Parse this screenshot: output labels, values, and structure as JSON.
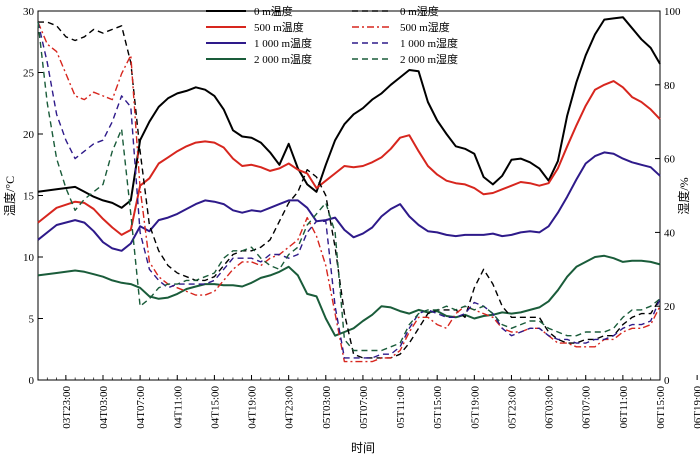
{
  "chart_data": {
    "type": "line",
    "xlabel": "时间",
    "ylabel_left": "温度/°C",
    "ylabel_right": "湿度/%",
    "ylim_left": [
      0,
      30
    ],
    "ylim_right": [
      0,
      100
    ],
    "yticks_left": [
      "0",
      "5",
      "10",
      "15",
      "20",
      "25",
      "30"
    ],
    "yticks_right": [
      "0",
      "20",
      "40",
      "60",
      "80",
      "100"
    ],
    "x_ticks": [
      "03T23:00",
      "04T03:00",
      "04T07:00",
      "04T11:00",
      "04T15:00",
      "04T19:00",
      "04T23:00",
      "05T03:00",
      "05T07:00",
      "05T11:00",
      "05T15:00",
      "05T19:00",
      "05T23:00",
      "06T03:00",
      "06T07:00",
      "06T11:00",
      "06T15:00",
      "06T19:00"
    ],
    "x_start_hour": 20,
    "x_end_hour": 87,
    "grid": false,
    "legend_position": "top",
    "series": [
      {
        "name": "0 m温度",
        "axis": "left",
        "style": "solid",
        "color": "#000000",
        "x": [
          20,
          22,
          24,
          25,
          26,
          27,
          28,
          29,
          30,
          31,
          32,
          33,
          34,
          35,
          36,
          37,
          38,
          39,
          40,
          41,
          42,
          43,
          44,
          45,
          46,
          47,
          48,
          49,
          50,
          51,
          52,
          53,
          54,
          55,
          56,
          57,
          58,
          59,
          60,
          61,
          62,
          63,
          64,
          65,
          66,
          67,
          68,
          69,
          70,
          71,
          72,
          73,
          74,
          75,
          76,
          77,
          78,
          79,
          80,
          81,
          82,
          83,
          84,
          85,
          86,
          87
        ],
        "y": [
          15.3,
          15.5,
          15.7,
          15.3,
          14.9,
          14.6,
          14.4,
          14.0,
          14.6,
          19.5,
          21.0,
          22.2,
          22.9,
          23.3,
          23.5,
          23.8,
          23.6,
          23.1,
          22.0,
          20.3,
          19.8,
          19.7,
          19.3,
          18.5,
          17.5,
          19.2,
          17.2,
          15.9,
          15.3,
          17.5,
          19.5,
          20.8,
          21.6,
          22.1,
          22.8,
          23.3,
          24.0,
          24.6,
          25.2,
          25.1,
          22.6,
          21.1,
          20.0,
          19.0,
          18.8,
          18.4,
          16.5,
          15.9,
          16.6,
          17.9,
          18.0,
          17.7,
          17.2,
          16.2,
          17.8,
          21.5,
          24.2,
          26.4,
          28.1,
          29.3,
          29.4,
          29.5,
          28.6,
          27.7,
          27.0,
          25.7
        ]
      },
      {
        "name": "500 m温度",
        "axis": "left",
        "style": "solid",
        "color": "#d7261e",
        "x": [
          20,
          22,
          24,
          25,
          26,
          27,
          28,
          29,
          30,
          31,
          32,
          33,
          34,
          35,
          36,
          37,
          38,
          39,
          40,
          41,
          42,
          43,
          44,
          45,
          46,
          47,
          48,
          49,
          50,
          51,
          52,
          53,
          54,
          55,
          56,
          57,
          58,
          59,
          60,
          61,
          62,
          63,
          64,
          65,
          66,
          67,
          68,
          69,
          70,
          71,
          72,
          73,
          74,
          75,
          76,
          77,
          78,
          79,
          80,
          81,
          82,
          83,
          84,
          85,
          86,
          87
        ],
        "y": [
          12.8,
          14.0,
          14.5,
          14.4,
          13.9,
          13.1,
          12.4,
          11.8,
          12.2,
          15.8,
          16.4,
          17.6,
          18.1,
          18.6,
          19.0,
          19.3,
          19.4,
          19.3,
          18.9,
          18.0,
          17.4,
          17.5,
          17.3,
          17.0,
          17.2,
          17.6,
          17.1,
          16.8,
          15.6,
          16.2,
          16.8,
          17.4,
          17.3,
          17.4,
          17.7,
          18.1,
          18.8,
          19.7,
          19.9,
          18.6,
          17.4,
          16.7,
          16.2,
          16.0,
          15.9,
          15.6,
          15.1,
          15.2,
          15.5,
          15.8,
          16.1,
          16.0,
          15.8,
          16.0,
          17.2,
          19.0,
          20.7,
          22.3,
          23.6,
          24.0,
          24.3,
          23.8,
          23.0,
          22.6,
          22.0,
          21.2
        ]
      },
      {
        "name": "1 000 m温度",
        "axis": "left",
        "style": "solid",
        "color": "#2e1a8a",
        "x": [
          20,
          22,
          24,
          25,
          26,
          27,
          28,
          29,
          30,
          31,
          32,
          33,
          34,
          35,
          36,
          37,
          38,
          39,
          40,
          41,
          42,
          43,
          44,
          45,
          46,
          47,
          48,
          49,
          50,
          51,
          52,
          53,
          54,
          55,
          56,
          57,
          58,
          59,
          60,
          61,
          62,
          63,
          64,
          65,
          66,
          67,
          68,
          69,
          70,
          71,
          72,
          73,
          74,
          75,
          76,
          77,
          78,
          79,
          80,
          81,
          82,
          83,
          84,
          85,
          86,
          87
        ],
        "y": [
          11.4,
          12.6,
          13.0,
          12.8,
          12.1,
          11.2,
          10.7,
          10.5,
          11.1,
          12.5,
          12.1,
          13.0,
          13.2,
          13.5,
          13.9,
          14.3,
          14.6,
          14.5,
          14.3,
          13.8,
          13.6,
          13.8,
          13.7,
          14.0,
          14.3,
          14.6,
          14.6,
          14.0,
          12.9,
          13.0,
          13.2,
          12.2,
          11.6,
          11.9,
          12.4,
          13.3,
          13.9,
          14.3,
          13.3,
          12.6,
          12.1,
          12.0,
          11.8,
          11.7,
          11.8,
          11.8,
          11.8,
          11.9,
          11.7,
          11.8,
          12.0,
          12.1,
          12.0,
          12.5,
          13.6,
          14.9,
          16.3,
          17.6,
          18.2,
          18.5,
          18.4,
          18.0,
          17.7,
          17.5,
          17.3,
          16.6
        ]
      },
      {
        "name": "2 000 m温度",
        "axis": "left",
        "style": "solid",
        "color": "#1a5c3a",
        "x": [
          20,
          22,
          24,
          25,
          26,
          27,
          28,
          29,
          30,
          31,
          32,
          33,
          34,
          35,
          36,
          37,
          38,
          39,
          40,
          41,
          42,
          43,
          44,
          45,
          46,
          47,
          48,
          49,
          50,
          51,
          52,
          53,
          54,
          55,
          56,
          57,
          58,
          59,
          60,
          61,
          62,
          63,
          64,
          65,
          66,
          67,
          68,
          69,
          70,
          71,
          72,
          73,
          74,
          75,
          76,
          77,
          78,
          79,
          80,
          81,
          82,
          83,
          84,
          85,
          86,
          87
        ],
        "y": [
          8.5,
          8.7,
          8.9,
          8.8,
          8.6,
          8.4,
          8.1,
          7.9,
          7.8,
          7.5,
          6.8,
          6.6,
          6.7,
          7.0,
          7.4,
          7.6,
          7.8,
          7.8,
          7.7,
          7.7,
          7.6,
          7.9,
          8.3,
          8.5,
          8.8,
          9.2,
          8.5,
          7.0,
          6.8,
          5.0,
          3.6,
          3.9,
          4.2,
          4.8,
          5.3,
          6.0,
          5.9,
          5.6,
          5.4,
          5.7,
          5.5,
          5.6,
          5.2,
          5.1,
          5.3,
          5.0,
          5.2,
          5.3,
          5.5,
          5.4,
          5.5,
          5.7,
          5.9,
          6.4,
          7.3,
          8.4,
          9.2,
          9.6,
          10.0,
          10.1,
          9.9,
          9.6,
          9.7,
          9.7,
          9.6,
          9.4
        ]
      },
      {
        "name": "0 m湿度",
        "axis": "right",
        "style": "dash",
        "color": "#000000",
        "x": [
          20,
          21,
          22,
          23,
          24,
          25,
          26,
          27,
          28,
          29,
          30,
          31,
          32,
          33,
          34,
          35,
          36,
          37,
          38,
          39,
          40,
          41,
          42,
          43,
          44,
          45,
          46,
          47,
          48,
          49,
          50,
          51,
          52,
          53,
          54,
          55,
          56,
          57,
          58,
          59,
          60,
          61,
          62,
          63,
          64,
          65,
          66,
          67,
          68,
          69,
          70,
          71,
          72,
          73,
          74,
          75,
          76,
          77,
          78,
          79,
          80,
          81,
          82,
          83,
          84,
          85,
          86,
          87
        ],
        "y": [
          97,
          97,
          96,
          93,
          92,
          93,
          95,
          94,
          95,
          96,
          86,
          62,
          42,
          35,
          31,
          29,
          28,
          27,
          27,
          28,
          31,
          34,
          35,
          35,
          36,
          38,
          43,
          48,
          51,
          57,
          55,
          50,
          36,
          18,
          7,
          6,
          6,
          6,
          6,
          7,
          10,
          14,
          18,
          19,
          19,
          19,
          17,
          25,
          30,
          26,
          20,
          17,
          17,
          17,
          17,
          13,
          11,
          10,
          10,
          11,
          11,
          12,
          12,
          15,
          17,
          18,
          18,
          22
        ]
      },
      {
        "name": "500 m湿度",
        "axis": "right",
        "style": "dashdot",
        "color": "#d7261e",
        "x": [
          20,
          21,
          22,
          23,
          24,
          25,
          26,
          27,
          28,
          29,
          30,
          31,
          32,
          33,
          34,
          35,
          36,
          37,
          38,
          39,
          40,
          41,
          42,
          43,
          44,
          45,
          46,
          47,
          48,
          49,
          50,
          51,
          52,
          53,
          54,
          55,
          56,
          57,
          58,
          59,
          60,
          61,
          62,
          63,
          64,
          65,
          66,
          67,
          68,
          69,
          70,
          71,
          72,
          73,
          74,
          75,
          76,
          77,
          78,
          79,
          80,
          81,
          82,
          83,
          84,
          85,
          86,
          87
        ],
        "y": [
          97,
          91,
          89,
          83,
          77,
          76,
          78,
          77,
          76,
          83,
          88,
          52,
          32,
          28,
          26,
          25,
          24,
          23,
          23,
          24,
          27,
          30,
          32,
          32,
          31,
          33,
          34,
          36,
          38,
          44,
          39,
          31,
          18,
          5,
          5,
          5,
          5,
          6,
          6,
          8,
          13,
          17,
          17,
          15,
          14,
          18,
          20,
          19,
          18,
          17,
          14,
          13,
          13,
          14,
          14,
          12,
          10,
          10,
          9,
          9,
          9,
          11,
          11,
          13,
          14,
          14,
          15,
          20
        ]
      },
      {
        "name": "1 000 m湿度",
        "axis": "right",
        "style": "dash",
        "color": "#2e1a8a",
        "x": [
          20,
          21,
          22,
          23,
          24,
          25,
          26,
          27,
          28,
          29,
          30,
          31,
          32,
          33,
          34,
          35,
          36,
          37,
          38,
          39,
          40,
          41,
          42,
          43,
          44,
          45,
          46,
          47,
          48,
          49,
          50,
          51,
          52,
          53,
          54,
          55,
          56,
          57,
          58,
          59,
          60,
          61,
          62,
          63,
          64,
          65,
          66,
          67,
          68,
          69,
          70,
          71,
          72,
          73,
          74,
          75,
          76,
          77,
          78,
          79,
          80,
          81,
          82,
          83,
          84,
          85,
          86,
          87
        ],
        "y": [
          97,
          86,
          72,
          65,
          60,
          62,
          64,
          65,
          70,
          77,
          74,
          40,
          30,
          27,
          25,
          26,
          26,
          26,
          26,
          27,
          30,
          33,
          33,
          33,
          32,
          34,
          34,
          33,
          34,
          40,
          43,
          43,
          20,
          6,
          6,
          6,
          6,
          7,
          7,
          9,
          14,
          18,
          19,
          18,
          17,
          17,
          18,
          21,
          20,
          18,
          14,
          12,
          13,
          14,
          14,
          12,
          11,
          11,
          10,
          10,
          11,
          11,
          12,
          14,
          15,
          15,
          16,
          22
        ]
      },
      {
        "name": "2 000 m湿度",
        "axis": "right",
        "style": "dash",
        "color": "#1a5c3a",
        "x": [
          20,
          21,
          22,
          23,
          24,
          25,
          26,
          27,
          28,
          29,
          30,
          31,
          32,
          33,
          34,
          35,
          36,
          37,
          38,
          39,
          40,
          41,
          42,
          43,
          44,
          45,
          46,
          47,
          48,
          49,
          50,
          51,
          52,
          53,
          54,
          55,
          56,
          57,
          58,
          59,
          60,
          61,
          62,
          63,
          64,
          65,
          66,
          67,
          68,
          69,
          70,
          71,
          72,
          73,
          74,
          75,
          76,
          77,
          78,
          79,
          80,
          81,
          82,
          83,
          84,
          85,
          86,
          87
        ],
        "y": [
          97,
          75,
          60,
          52,
          46,
          49,
          51,
          53,
          62,
          68,
          45,
          20,
          22,
          25,
          26,
          26,
          27,
          27,
          28,
          29,
          33,
          35,
          35,
          36,
          33,
          31,
          30,
          34,
          36,
          42,
          45,
          48,
          40,
          11,
          8,
          8,
          8,
          8,
          9,
          10,
          15,
          18,
          19,
          19,
          20,
          19,
          20,
          19,
          20,
          18,
          15,
          14,
          15,
          16,
          16,
          14,
          13,
          12,
          12,
          13,
          13,
          13,
          14,
          17,
          19,
          19,
          20,
          22
        ]
      }
    ]
  }
}
